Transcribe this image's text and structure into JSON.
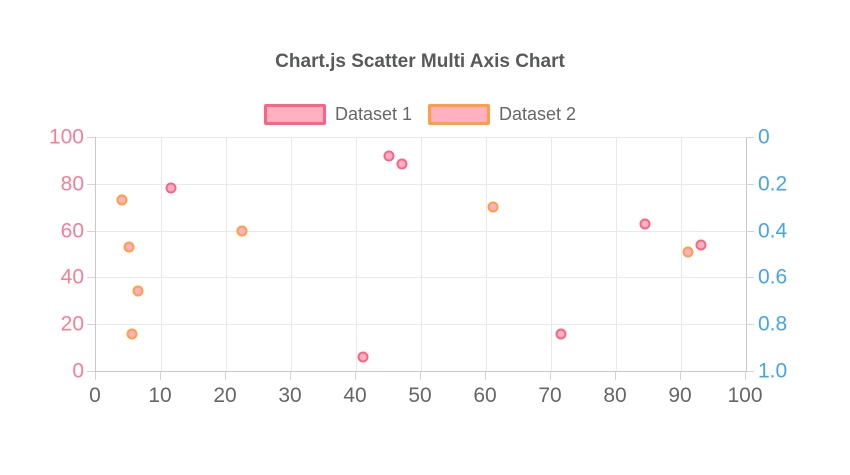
{
  "chart_data": {
    "type": "scatter",
    "title": "Chart.js Scatter Multi Axis Chart",
    "legend_position": "top",
    "grid": true,
    "colors": {
      "pink_border": "#ff6384",
      "orange_border": "#ff9f40",
      "point_fill": "#ffb1c1",
      "left_axis_text": "#f97d95",
      "right_axis_text": "#45a5e9",
      "x_axis_text": "#666666",
      "title_text": "#58595b",
      "gridline": "#e9e9e9"
    },
    "x_axis": {
      "min": 0,
      "max": 100,
      "tick_labels": [
        "0",
        "10",
        "20",
        "30",
        "40",
        "50",
        "60",
        "70",
        "80",
        "90",
        "100"
      ],
      "tick_values": [
        0,
        10,
        20,
        30,
        40,
        50,
        60,
        70,
        80,
        90,
        100
      ]
    },
    "y_axis_left": {
      "min": 0,
      "max": 100,
      "reversed": false,
      "tick_labels": [
        "100",
        "80",
        "60",
        "40",
        "20",
        "0"
      ],
      "tick_values": [
        100,
        80,
        60,
        40,
        20,
        0
      ]
    },
    "y_axis_right": {
      "min": 0,
      "max": 1,
      "reversed": true,
      "tick_labels": [
        "0",
        "0.2",
        "0.4",
        "0.6",
        "0.8",
        "1.0"
      ],
      "tick_values": [
        0,
        0.2,
        0.4,
        0.6,
        0.8,
        1.0
      ]
    },
    "series": [
      {
        "name": "Dataset 1",
        "axis": "left",
        "border_color": "#ff6384",
        "fill_color": "#ffb1c1",
        "points": [
          {
            "x": 11.5,
            "y": 78
          },
          {
            "x": 41,
            "y": 6
          },
          {
            "x": 45,
            "y": 92
          },
          {
            "x": 47,
            "y": 88.5
          },
          {
            "x": 71.5,
            "y": 16
          },
          {
            "x": 84.5,
            "y": 63
          },
          {
            "x": 93,
            "y": 54
          }
        ]
      },
      {
        "name": "Dataset 2",
        "axis": "right",
        "border_color": "#ff9f40",
        "fill_color": "#ffb1c1",
        "points": [
          {
            "x": 4,
            "y": 0.27
          },
          {
            "x": 5,
            "y": 0.47
          },
          {
            "x": 6.5,
            "y": 0.66
          },
          {
            "x": 5.5,
            "y": 0.84
          },
          {
            "x": 22.5,
            "y": 0.4
          },
          {
            "x": 61,
            "y": 0.3
          },
          {
            "x": 91,
            "y": 0.49
          }
        ]
      }
    ]
  }
}
